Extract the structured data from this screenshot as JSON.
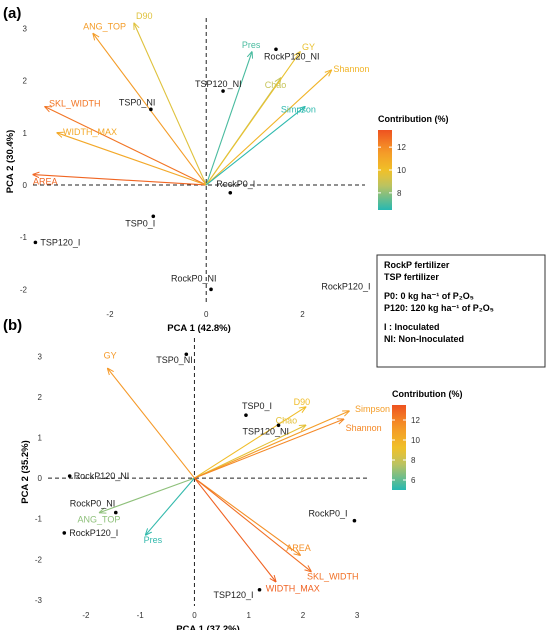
{
  "chart_data": [
    {
      "type": "biplot",
      "panel_label": "(a)",
      "xlabel": "PCA 1 (42.8%)",
      "ylabel": "PCA 2 (30.4%)",
      "xlim": [
        -3.6,
        3.3
      ],
      "ylim": [
        -2.3,
        3.2
      ],
      "xticks": [
        -2,
        0,
        2
      ],
      "yticks": [
        -2,
        -1,
        0,
        1,
        2,
        3
      ],
      "legend": {
        "title": "Contribution (%)",
        "ticks": [
          8,
          10,
          12
        ],
        "range": [
          6.5,
          13.5
        ],
        "position": "right"
      },
      "points": [
        {
          "label": "RockP120_NI",
          "x": 1.45,
          "y": 2.6
        },
        {
          "label": "TSP120_NI",
          "x": 0.35,
          "y": 1.8
        },
        {
          "label": "TSP0_NI",
          "x": -1.15,
          "y": 1.45
        },
        {
          "label": "RockP0_I",
          "x": 0.5,
          "y": -0.15
        },
        {
          "label": "TSP0_I",
          "x": -1.1,
          "y": -0.6
        },
        {
          "label": "TSP120_I",
          "x": -3.55,
          "y": -1.1
        },
        {
          "label": "RockP0_NI",
          "x": 0.1,
          "y": -2.0
        },
        {
          "label": "RockP120_I",
          "x": 3.6,
          "y": -1.95
        }
      ],
      "vectors": [
        {
          "name": "AREA",
          "x": -3.6,
          "y": 0.2,
          "contrib": 13.0
        },
        {
          "name": "SKL_WIDTH",
          "x": -3.35,
          "y": 1.5,
          "contrib": 12.6
        },
        {
          "name": "WIDTH_MAX",
          "x": -3.1,
          "y": 1.0,
          "contrib": 11.0
        },
        {
          "name": "ANG_TOP",
          "x": -2.35,
          "y": 2.9,
          "contrib": 11.5
        },
        {
          "name": "D90",
          "x": -1.5,
          "y": 3.1,
          "contrib": 9.5
        },
        {
          "name": "Pres",
          "x": 0.95,
          "y": 2.55,
          "contrib": 7.0
        },
        {
          "name": "Chao",
          "x": 1.55,
          "y": 2.05,
          "contrib": 8.8
        },
        {
          "name": "GY",
          "x": 1.95,
          "y": 2.55,
          "contrib": 9.8
        },
        {
          "name": "Shannon",
          "x": 2.6,
          "y": 2.2,
          "contrib": 10.5
        },
        {
          "name": "Simpson",
          "x": 2.05,
          "y": 1.5,
          "contrib": 6.6
        }
      ]
    },
    {
      "type": "biplot",
      "panel_label": "(b)",
      "xlabel": "PCA 1 (37.2%)",
      "ylabel": "PCA 2 (35.2%)",
      "xlim": [
        -2.7,
        3.2
      ],
      "ylim": [
        -3.15,
        3.45
      ],
      "xticks": [
        -2,
        -1,
        0,
        1,
        2,
        3
      ],
      "yticks": [
        -3,
        -2,
        -1,
        0,
        1,
        2,
        3
      ],
      "legend": {
        "title": "Contribution (%)",
        "ticks": [
          6,
          8,
          10,
          12
        ],
        "range": [
          5,
          13.5
        ],
        "position": "right"
      },
      "points": [
        {
          "label": "TSP0_NI",
          "x": -0.15,
          "y": 3.05
        },
        {
          "label": "TSP0_I",
          "x": 0.95,
          "y": 1.55
        },
        {
          "label": "TSP120_NI",
          "x": 1.55,
          "y": 1.3
        },
        {
          "label": "RockP120_NI",
          "x": -2.3,
          "y": 0.05
        },
        {
          "label": "RockP0_NI",
          "x": -1.45,
          "y": -0.85
        },
        {
          "label": "RockP120_I",
          "x": -2.4,
          "y": -1.35
        },
        {
          "label": "RockP0_I",
          "x": 2.95,
          "y": -1.05
        },
        {
          "label": "TSP120_I",
          "x": 1.2,
          "y": -2.75
        }
      ],
      "vectors": [
        {
          "name": "GY",
          "x": -1.6,
          "y": 2.7,
          "contrib": 11.2
        },
        {
          "name": "D90",
          "x": 2.05,
          "y": 1.75,
          "contrib": 9.4
        },
        {
          "name": "Chao",
          "x": 2.05,
          "y": 1.3,
          "contrib": 8.8
        },
        {
          "name": "Simpson",
          "x": 2.85,
          "y": 1.65,
          "contrib": 11.0
        },
        {
          "name": "Shannon",
          "x": 2.75,
          "y": 1.45,
          "contrib": 11.8
        },
        {
          "name": "ANG_TOP",
          "x": -1.75,
          "y": -0.85,
          "contrib": 6.8
        },
        {
          "name": "Pres",
          "x": -0.9,
          "y": -1.4,
          "contrib": 5.2
        },
        {
          "name": "AREA",
          "x": 1.95,
          "y": -1.9,
          "contrib": 11.6
        },
        {
          "name": "SKL_WIDTH",
          "x": 2.15,
          "y": -2.3,
          "contrib": 12.6
        },
        {
          "name": "WIDTH_MAX",
          "x": 1.5,
          "y": -2.55,
          "contrib": 13.0
        }
      ]
    }
  ],
  "treatment_key": {
    "lines": [
      "RockP fertilizer",
      "TSP fertilizer",
      "",
      "P0: 0 kg ha⁻¹ of P₂O₅",
      "P120: 120 kg ha⁻¹ of P₂O₅",
      "",
      "I : Inoculated",
      "NI: Non-Inoculated"
    ]
  }
}
